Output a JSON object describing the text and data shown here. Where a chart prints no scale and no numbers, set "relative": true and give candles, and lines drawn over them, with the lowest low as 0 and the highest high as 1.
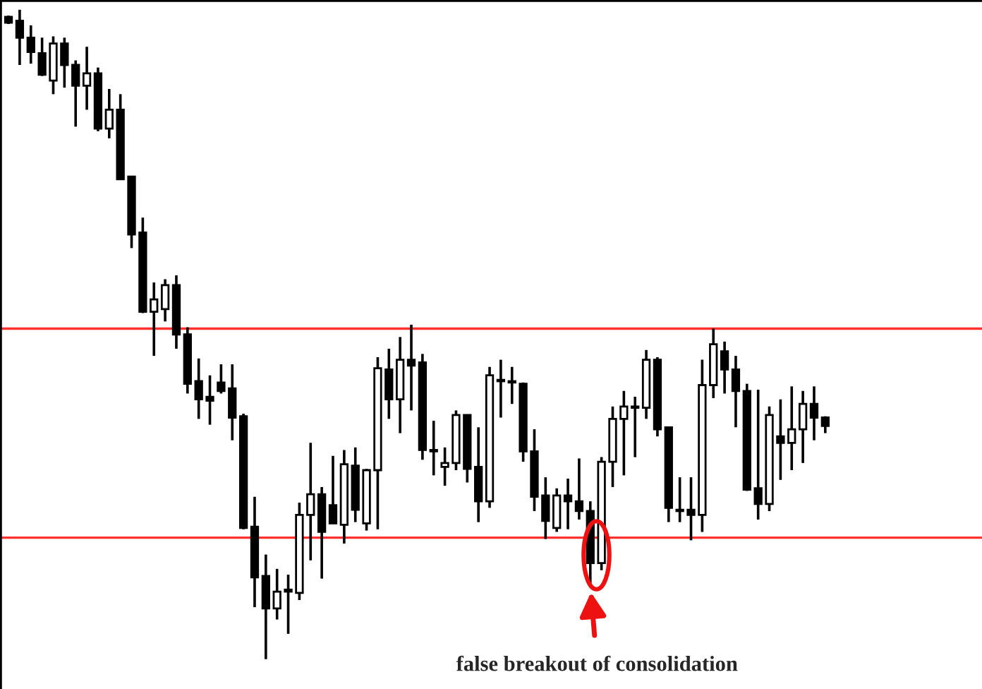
{
  "chart_data": {
    "type": "candlestick",
    "relative": true,
    "categories": [
      null,
      null,
      null,
      null,
      null,
      null,
      null,
      null,
      null,
      null,
      null,
      null,
      null,
      null,
      null,
      null,
      null,
      null,
      null,
      null,
      null,
      null,
      null,
      null,
      null,
      null,
      null,
      null,
      null,
      null,
      null,
      null,
      null,
      null,
      null,
      null,
      null,
      null,
      null,
      null,
      null,
      null,
      null,
      null,
      null,
      null,
      null,
      null,
      null,
      null,
      null,
      null,
      null,
      null,
      null,
      null,
      null,
      null,
      null,
      null,
      null,
      null,
      null,
      null,
      null,
      null,
      null,
      null,
      null,
      null,
      null,
      null,
      null,
      null
    ],
    "ohlc": [
      [
        0.989,
        0.991,
        0.978,
        0.98
      ],
      [
        0.983,
        1.0,
        0.915,
        0.957
      ],
      [
        0.957,
        0.976,
        0.917,
        0.935
      ],
      [
        0.933,
        0.957,
        0.898,
        0.9
      ],
      [
        0.891,
        0.959,
        0.87,
        0.948
      ],
      [
        0.948,
        0.957,
        0.88,
        0.915
      ],
      [
        0.915,
        0.922,
        0.82,
        0.883
      ],
      [
        0.883,
        0.943,
        0.846,
        0.902
      ],
      [
        0.902,
        0.911,
        0.813,
        0.817
      ],
      [
        0.817,
        0.878,
        0.802,
        0.846
      ],
      [
        0.846,
        0.87,
        0.739,
        0.739
      ],
      [
        0.743,
        0.743,
        0.633,
        0.654
      ],
      [
        0.657,
        0.68,
        0.533,
        0.535
      ],
      [
        0.535,
        0.58,
        0.467,
        0.554
      ],
      [
        0.539,
        0.585,
        0.52,
        0.576
      ],
      [
        0.576,
        0.591,
        0.478,
        0.5
      ],
      [
        0.5,
        0.511,
        0.409,
        0.424
      ],
      [
        0.428,
        0.463,
        0.37,
        0.4
      ],
      [
        0.404,
        0.437,
        0.361,
        0.398
      ],
      [
        0.426,
        0.454,
        0.409,
        0.413
      ],
      [
        0.417,
        0.454,
        0.337,
        0.372
      ],
      [
        0.374,
        0.378,
        0.2,
        0.202
      ],
      [
        0.204,
        0.25,
        0.08,
        0.126
      ],
      [
        0.128,
        0.161,
        0.0,
        0.078
      ],
      [
        0.078,
        0.139,
        0.061,
        0.104
      ],
      [
        0.104,
        0.13,
        0.039,
        0.107
      ],
      [
        0.102,
        0.241,
        0.091,
        0.222
      ],
      [
        0.222,
        0.333,
        0.152,
        0.254
      ],
      [
        0.254,
        0.265,
        0.124,
        0.196
      ],
      [
        0.237,
        0.313,
        0.209,
        0.209
      ],
      [
        0.207,
        0.322,
        0.178,
        0.3
      ],
      [
        0.298,
        0.326,
        0.211,
        0.23
      ],
      [
        0.209,
        0.293,
        0.198,
        0.291
      ],
      [
        0.291,
        0.465,
        0.2,
        0.448
      ],
      [
        0.446,
        0.478,
        0.37,
        0.4
      ],
      [
        0.4,
        0.496,
        0.348,
        0.461
      ],
      [
        0.461,
        0.515,
        0.383,
        0.452
      ],
      [
        0.457,
        0.47,
        0.307,
        0.322
      ],
      [
        0.322,
        0.367,
        0.283,
        0.32
      ],
      [
        0.296,
        0.326,
        0.267,
        0.302
      ],
      [
        0.302,
        0.383,
        0.291,
        0.376
      ],
      [
        0.376,
        0.376,
        0.272,
        0.293
      ],
      [
        0.296,
        0.357,
        0.211,
        0.243
      ],
      [
        0.243,
        0.45,
        0.233,
        0.437
      ],
      [
        0.43,
        0.461,
        0.372,
        0.428
      ],
      [
        0.428,
        0.45,
        0.393,
        0.426
      ],
      [
        0.424,
        0.426,
        0.304,
        0.32
      ],
      [
        0.32,
        0.354,
        0.228,
        0.25
      ],
      [
        0.252,
        0.28,
        0.185,
        0.213
      ],
      [
        0.202,
        0.263,
        0.196,
        0.252
      ],
      [
        0.252,
        0.278,
        0.2,
        0.243
      ],
      [
        0.243,
        0.309,
        0.215,
        0.228
      ],
      [
        0.228,
        0.243,
        0.115,
        0.148
      ],
      [
        0.148,
        0.311,
        0.137,
        0.304
      ],
      [
        0.304,
        0.389,
        0.265,
        0.37
      ],
      [
        0.37,
        0.413,
        0.283,
        0.389
      ],
      [
        0.389,
        0.404,
        0.311,
        0.387
      ],
      [
        0.387,
        0.476,
        0.37,
        0.461
      ],
      [
        0.461,
        0.465,
        0.343,
        0.354
      ],
      [
        0.357,
        0.357,
        0.211,
        0.233
      ],
      [
        0.23,
        0.28,
        0.211,
        0.228
      ],
      [
        0.23,
        0.28,
        0.183,
        0.222
      ],
      [
        0.222,
        0.461,
        0.196,
        0.422
      ],
      [
        0.422,
        0.509,
        0.402,
        0.485
      ],
      [
        0.474,
        0.489,
        0.409,
        0.446
      ],
      [
        0.446,
        0.467,
        0.357,
        0.413
      ],
      [
        0.413,
        0.424,
        0.259,
        0.261
      ],
      [
        0.263,
        0.415,
        0.215,
        0.239
      ],
      [
        0.239,
        0.389,
        0.228,
        0.376
      ],
      [
        0.343,
        0.4,
        0.276,
        0.333
      ],
      [
        0.333,
        0.42,
        0.291,
        0.354
      ],
      [
        0.354,
        0.413,
        0.302,
        0.393
      ],
      [
        0.393,
        0.42,
        0.337,
        0.372
      ],
      [
        0.372,
        0.374,
        0.348,
        0.359
      ]
    ],
    "ref_lines": [
      {
        "axis": "y",
        "value": 0.509,
        "color": "#ff3030"
      },
      {
        "axis": "y",
        "value": 0.187,
        "color": "#ff3030"
      }
    ],
    "annotations": [
      "false breakout of consolidation"
    ]
  }
}
